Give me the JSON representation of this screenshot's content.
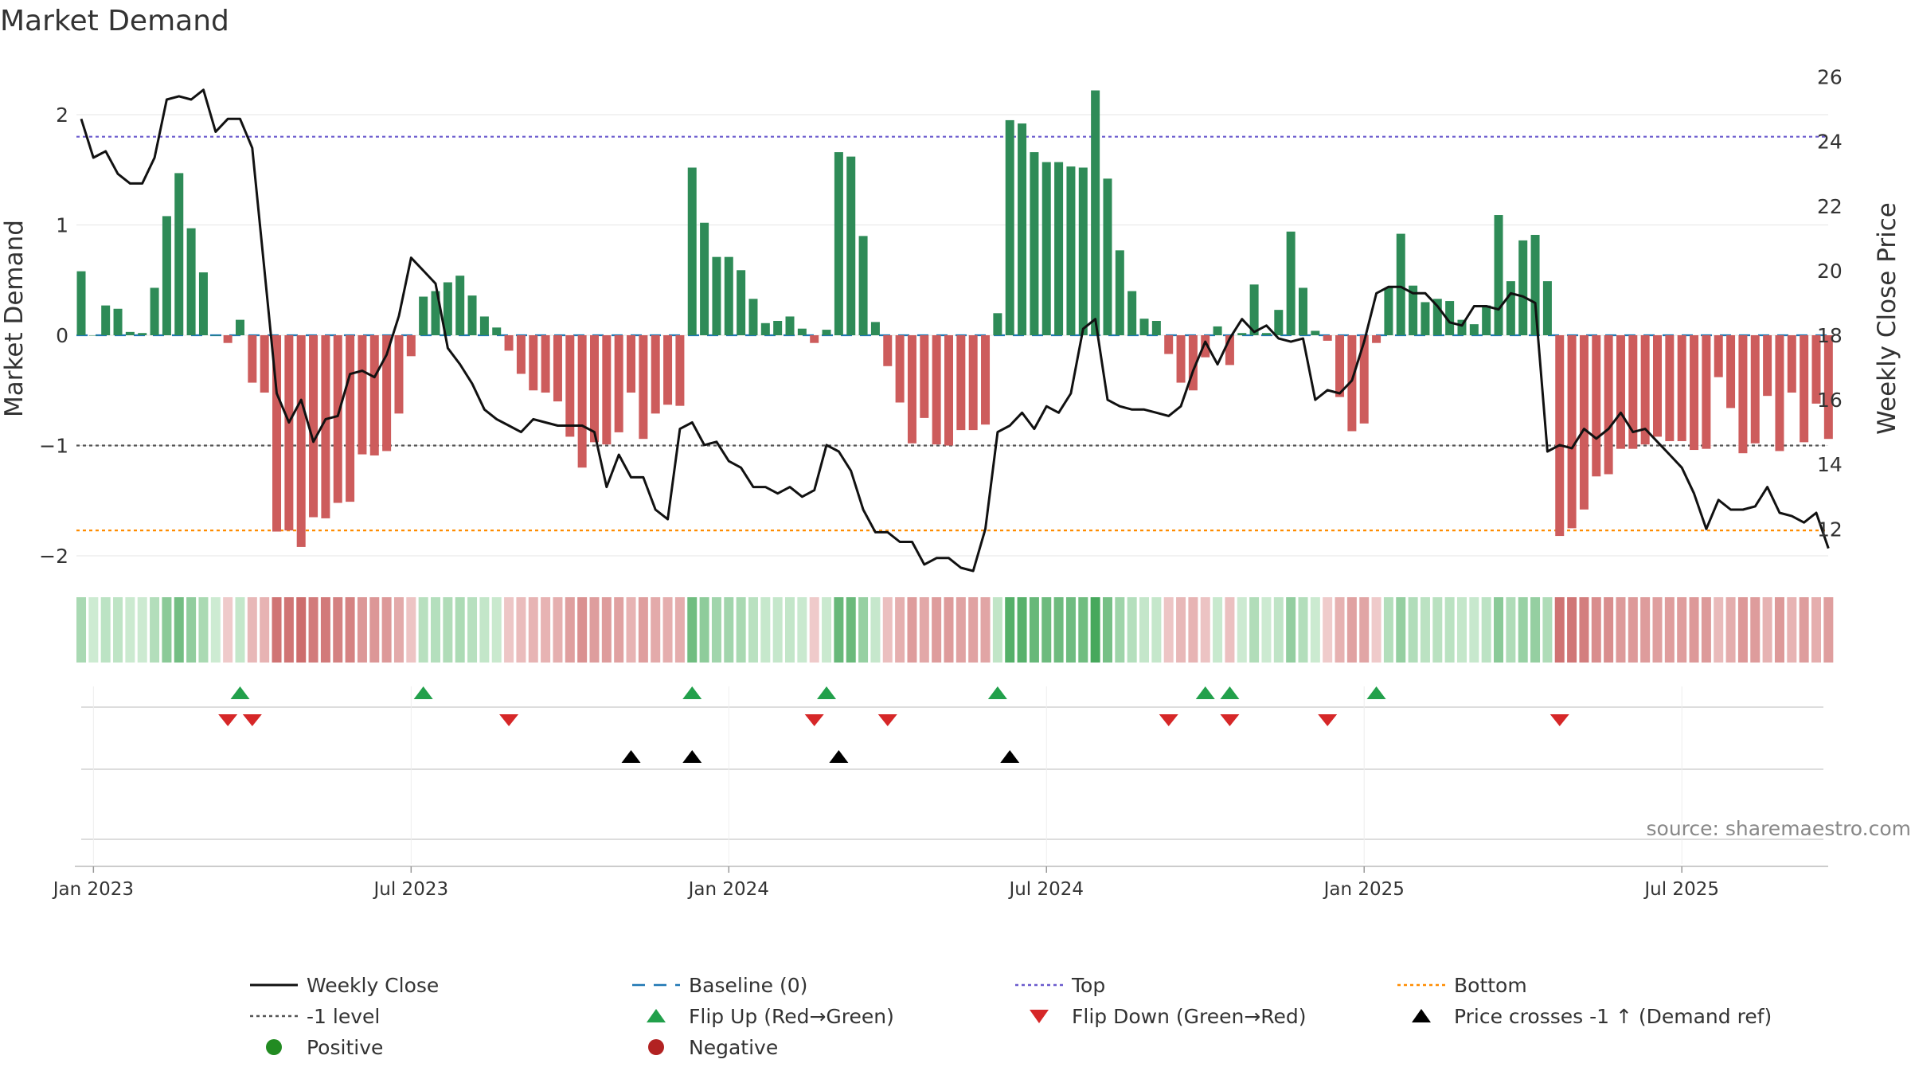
{
  "chart_data": {
    "type": "bar",
    "title": "Market Demand",
    "ylabel": "Market Demand",
    "y2label": "Weekly Close Price",
    "source": "source: sharemaestro.com",
    "ylim": [
      -2.1,
      2.45
    ],
    "y2lim": [
      10.9,
      26.3
    ],
    "yticks": [
      {
        "v": 2,
        "label": "2"
      },
      {
        "v": 1,
        "label": "1"
      },
      {
        "v": 0,
        "label": "0"
      },
      {
        "v": -1,
        "label": "−1"
      },
      {
        "v": -2,
        "label": "−2"
      }
    ],
    "y2ticks": [
      12,
      14,
      16,
      18,
      20,
      22,
      24,
      26
    ],
    "xticks": [
      {
        "week": 1,
        "label": "Jan 2023"
      },
      {
        "week": 27,
        "label": "Jul 2023"
      },
      {
        "week": 53,
        "label": "Jan 2024"
      },
      {
        "week": 79,
        "label": "Jul 2024"
      },
      {
        "week": 105,
        "label": "Jan 2025"
      },
      {
        "week": 131,
        "label": "Jul 2025"
      }
    ],
    "levels": {
      "top": 1.8,
      "bottom": -1.77,
      "minus_one": -1.0,
      "baseline": 0
    },
    "demand": [
      0.58,
      0.0,
      0.27,
      0.24,
      0.03,
      0.02,
      0.43,
      1.08,
      1.47,
      0.97,
      0.57,
      0.0,
      -0.07,
      0.14,
      -0.43,
      -0.52,
      -1.78,
      -1.77,
      -1.92,
      -1.65,
      -1.66,
      -1.52,
      -1.51,
      -1.08,
      -1.09,
      -1.05,
      -0.71,
      -0.19,
      0.35,
      0.4,
      0.48,
      0.54,
      0.36,
      0.17,
      0.07,
      -0.14,
      -0.35,
      -0.5,
      -0.52,
      -0.6,
      -0.92,
      -1.2,
      -0.97,
      -0.99,
      -0.88,
      -0.52,
      -0.94,
      -0.71,
      -0.63,
      -0.64,
      1.52,
      1.02,
      0.71,
      0.71,
      0.59,
      0.33,
      0.11,
      0.13,
      0.17,
      0.06,
      -0.07,
      0.05,
      1.66,
      1.62,
      0.9,
      0.12,
      -0.28,
      -0.61,
      -0.98,
      -0.75,
      -0.99,
      -1.0,
      -0.86,
      -0.86,
      -0.81,
      0.2,
      1.95,
      1.92,
      1.66,
      1.57,
      1.57,
      1.53,
      1.52,
      2.22,
      1.42,
      0.77,
      0.4,
      0.15,
      0.13,
      -0.17,
      -0.43,
      -0.5,
      -0.2,
      0.08,
      -0.27,
      0.02,
      0.46,
      0.02,
      0.23,
      0.94,
      0.43,
      0.04,
      -0.05,
      -0.56,
      -0.87,
      -0.8,
      -0.07,
      0.43,
      0.92,
      0.45,
      0.3,
      0.33,
      0.31,
      0.14,
      0.1,
      0.27,
      1.09,
      0.49,
      0.86,
      0.91,
      0.49,
      -1.82,
      -1.75,
      -1.58,
      -1.28,
      -1.26,
      -1.03,
      -1.03,
      -0.99,
      -0.92,
      -0.96,
      -0.96,
      -1.04,
      -1.03,
      -0.38,
      -0.66,
      -1.07,
      -0.98,
      -0.55,
      -1.05,
      -0.52,
      -0.97,
      -0.62,
      -0.94
    ],
    "close": [
      24.7,
      23.5,
      23.7,
      23.0,
      22.7,
      22.7,
      23.5,
      25.3,
      25.4,
      25.3,
      25.6,
      24.3,
      24.7,
      24.7,
      23.8,
      20.0,
      16.2,
      15.3,
      16.0,
      14.7,
      15.4,
      15.5,
      16.8,
      16.9,
      16.7,
      17.4,
      18.6,
      20.4,
      20.0,
      19.6,
      17.6,
      17.1,
      16.5,
      15.7,
      15.4,
      15.2,
      15.0,
      15.4,
      15.3,
      15.2,
      15.2,
      15.2,
      15.0,
      13.3,
      14.3,
      13.6,
      13.6,
      12.6,
      12.3,
      15.1,
      15.3,
      14.6,
      14.7,
      14.1,
      13.9,
      13.3,
      13.3,
      13.1,
      13.3,
      13.0,
      13.2,
      14.6,
      14.4,
      13.8,
      12.6,
      11.9,
      11.9,
      11.6,
      11.6,
      10.9,
      11.1,
      11.1,
      10.8,
      10.7,
      12.0,
      15.0,
      15.2,
      15.6,
      15.1,
      15.8,
      15.6,
      16.2,
      18.2,
      18.5,
      16.0,
      15.8,
      15.7,
      15.7,
      15.6,
      15.5,
      15.8,
      16.9,
      17.8,
      17.1,
      17.9,
      18.5,
      18.1,
      18.3,
      17.9,
      17.8,
      17.9,
      16.0,
      16.3,
      16.2,
      16.6,
      17.8,
      19.3,
      19.5,
      19.5,
      19.3,
      19.3,
      18.9,
      18.4,
      18.3,
      18.9,
      18.9,
      18.8,
      19.3,
      19.2,
      19.0,
      14.4,
      14.6,
      14.5,
      15.1,
      14.8,
      15.1,
      15.6,
      15.0,
      15.1,
      14.7,
      14.3,
      13.9,
      13.1,
      12.0,
      12.9,
      12.6,
      12.6,
      12.7,
      13.3,
      12.5,
      12.4,
      12.2,
      12.5,
      11.4
    ],
    "flip_up_weeks": [
      13,
      28,
      50,
      61,
      75,
      92,
      94,
      106
    ],
    "flip_down_weeks": [
      12,
      14,
      35,
      60,
      66,
      89,
      94,
      102,
      121
    ],
    "price_cross_weeks": [
      45,
      50,
      62,
      76
    ],
    "legend": [
      {
        "label": "Weekly Close",
        "symbol": "line"
      },
      {
        "label": "Baseline (0)",
        "symbol": "dash"
      },
      {
        "label": "Top",
        "symbol": "dot-purple"
      },
      {
        "label": "Bottom",
        "symbol": "dot-orange"
      },
      {
        "label": "-1 level",
        "symbol": "dot-grey"
      },
      {
        "label": "Flip Up (Red→Green)",
        "symbol": "tri-up-green"
      },
      {
        "label": "Flip Down (Green→Red)",
        "symbol": "tri-down-red"
      },
      {
        "label": "Price crosses -1 ↑ (Demand ref)",
        "symbol": "tri-up-black"
      },
      {
        "label": "Positive",
        "symbol": "dot-green"
      },
      {
        "label": "Negative",
        "symbol": "dot-red"
      }
    ],
    "colors": {
      "positive": "#2e8b57",
      "negative": "#cd5c5c",
      "close": "#111111",
      "baseline": "#1f77b4",
      "top": "#6a5acd",
      "bottom": "#ff8c00",
      "minus_one": "#555555",
      "flip_up": "#22a04b",
      "flip_down": "#d62728",
      "cross": "#000000",
      "legend_positive": "#228b22",
      "legend_negative": "#b22222"
    }
  }
}
